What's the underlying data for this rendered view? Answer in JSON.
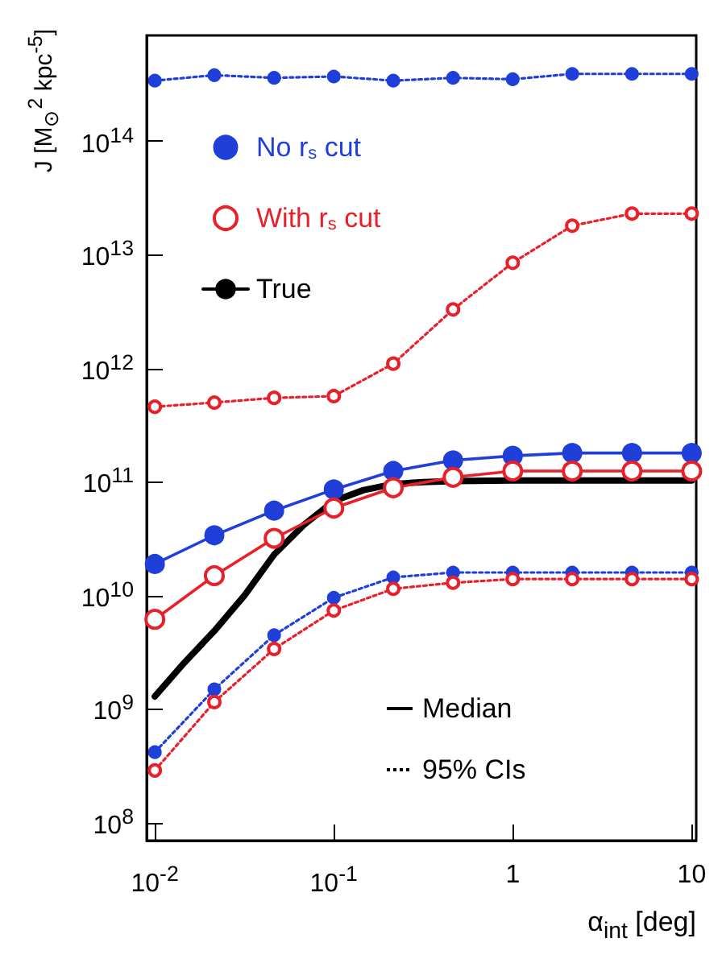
{
  "chart_data": {
    "type": "line",
    "xlabel": "α$_{int}$  [deg]",
    "ylabel": "J [M$_{⊙}$$^{2}$ kpc$^{-5}$]",
    "log": "xy",
    "grid": false,
    "legend": "top left",
    "xlim": [
      0.009,
      10.6
    ],
    "ylim": [
      70000000.0,
      850000000000000.0
    ],
    "xticks": [
      {
        "value": 0.01,
        "label": "10$^{-2}$"
      },
      {
        "value": 0.1,
        "label": "10$^{-1}$"
      },
      1,
      10
    ],
    "yticks": [
      {
        "value": 100000000.0,
        "label": "10$^{8}$"
      },
      {
        "value": 1000000000.0,
        "label": "10$^{9}$"
      },
      {
        "value": 10000000000.0,
        "label": "10$^{10}$"
      },
      {
        "value": 100000000000.0,
        "label": "10$^{11}$"
      },
      {
        "value": 1000000000000.0,
        "label": "10$^{12}$"
      },
      {
        "value": 10000000000000.0,
        "label": "10$^{13}$"
      },
      {
        "value": 100000000000000.0,
        "label": "10$^{14}$"
      }
    ],
    "x": [
      0.01,
      0.0215,
      0.0464,
      0.1,
      0.215,
      0.464,
      1,
      2.15,
      4.64,
      10
    ],
    "series": [
      {
        "name": "No r$_{s}$ cut",
        "color": "#1f3fd8",
        "marker": "circle",
        "line_style": "solid",
        "values": [
          19000000000.0,
          34000000000.0,
          56000000000.0,
          86000000000.0,
          125000000000.0,
          155000000000.0,
          170000000000.0,
          180000000000.0,
          180000000000.0,
          180000000000.0
        ]
      },
      {
        "name": "With r$_{s}$ cut",
        "color": "#e8202a",
        "marker": "open circle",
        "line_style": "solid",
        "values": [
          6200000000.0,
          15000000000.0,
          32000000000.0,
          59000000000.0,
          89000000000.0,
          110000000000.0,
          125000000000.0,
          125000000000.0,
          125000000000.0,
          125000000000.0
        ]
      },
      {
        "name": "True",
        "color": "#000000",
        "marker": "none",
        "line_style": "solid",
        "x": [
          0.01,
          0.0147,
          0.0215,
          0.0316,
          0.0464,
          0.068,
          0.1,
          0.147,
          0.215,
          0.316,
          0.464,
          1,
          10
        ],
        "values": [
          1300000000.0,
          2600000000.0,
          4900000000.0,
          10000000000.0,
          23000000000.0,
          42000000000.0,
          68000000000.0,
          85000000000.0,
          96000000000.0,
          100000000000.0,
          102000000000.0,
          103000000000.0,
          103000000000.0
        ]
      },
      {
        "color": "#1f3fd8",
        "marker": "circle",
        "line_style": "dotted",
        "values": [
          340000000000000.0,
          380000000000000.0,
          360000000000000.0,
          370000000000000.0,
          340000000000000.0,
          360000000000000.0,
          350000000000000.0,
          390000000000000.0,
          390000000000000.0,
          390000000000000.0
        ]
      },
      {
        "color": "#1f3fd8",
        "marker": "circle",
        "line_style": "dotted",
        "values": [
          420000000.0,
          1500000000.0,
          4500000000.0,
          9600000000.0,
          14500000000.0,
          16000000000.0,
          16000000000.0,
          16000000000.0,
          16000000000.0,
          16000000000.0
        ]
      },
      {
        "color": "#e8202a",
        "marker": "open circle",
        "line_style": "dotted",
        "values": [
          460000000000.0,
          500000000000.0,
          550000000000.0,
          570000000000.0,
          1100000000000.0,
          3300000000000.0,
          8500000000000.0,
          18000000000000.0,
          23000000000000.0,
          23000000000000.0
        ]
      },
      {
        "color": "#e8202a",
        "marker": "open circle",
        "line_style": "dotted",
        "values": [
          290000000.0,
          1160000000.0,
          3400000000.0,
          7400000000.0,
          11500000000.0,
          13000000000.0,
          14000000000.0,
          14000000000.0,
          14000000000.0,
          14000000000.0
        ]
      }
    ],
    "annotations": [
      "Median",
      "95% CIs"
    ]
  }
}
